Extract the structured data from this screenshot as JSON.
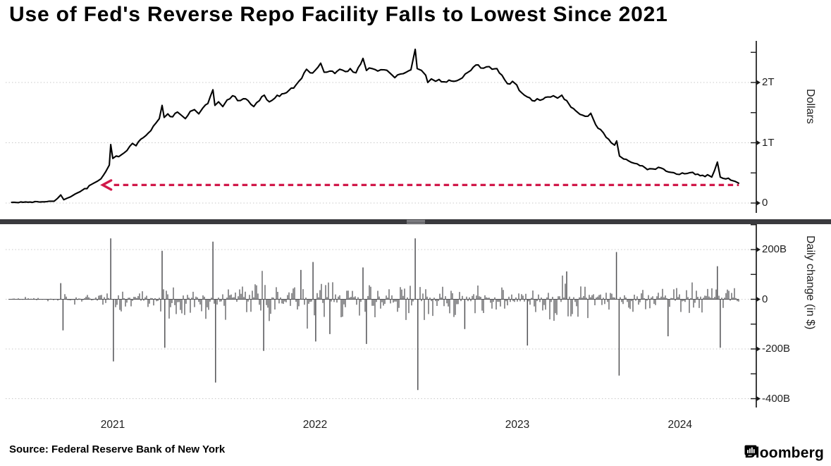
{
  "title": "Use of Fed's Reverse Repo Facility Falls to Lowest Since 2021",
  "source": "Source: Federal Reserve Bank of New York",
  "brand": {
    "name": "Bloomberg",
    "icon": "bloomberg-chart-bubble-icon"
  },
  "colors": {
    "line": "#000000",
    "bars": "#515154",
    "annotation": "#d1194a",
    "grid": "#c6c6c6",
    "axis": "#1a1a1a",
    "divider": "#3a3a3e"
  },
  "x_axis": {
    "year_labels": [
      "2021",
      "2022",
      "2023",
      "2024"
    ]
  },
  "chart_data": [
    {
      "type": "line",
      "panel": "top",
      "ylabel": "Dollars",
      "unit": "trillions of USD",
      "ylim": [
        0,
        2.69
      ],
      "grid": true,
      "yticks": [
        {
          "value": 0,
          "label": "0"
        },
        {
          "value": 1,
          "label": "1T"
        },
        {
          "value": 2,
          "label": "2T"
        }
      ],
      "yticks_minor": [
        0.5,
        1.5,
        2.5
      ],
      "annotation": {
        "type": "dashed-arrow-left",
        "value": 0.3,
        "from": 2021.45,
        "to": 2024.595,
        "color": "#d1194a",
        "meaning": "current usage level last seen in 2021"
      },
      "points": [
        [
          2021.0,
          0.01
        ],
        [
          2021.08,
          0.014
        ],
        [
          2021.15,
          0.02
        ],
        [
          2021.21,
          0.03
        ],
        [
          2021.243,
          0.134
        ],
        [
          2021.258,
          0.055
        ],
        [
          2021.29,
          0.1
        ],
        [
          2021.326,
          0.17
        ],
        [
          2021.361,
          0.24
        ],
        [
          2021.395,
          0.31
        ],
        [
          2021.423,
          0.36
        ],
        [
          2021.441,
          0.4
        ],
        [
          2021.465,
          0.52
        ],
        [
          2021.483,
          0.63
        ],
        [
          2021.49,
          0.97
        ],
        [
          2021.5,
          0.74
        ],
        [
          2021.517,
          0.78
        ],
        [
          2021.542,
          0.8
        ],
        [
          2021.57,
          0.87
        ],
        [
          2021.597,
          0.99
        ],
        [
          2021.615,
          0.95
        ],
        [
          2021.639,
          1.06
        ],
        [
          2021.664,
          1.12
        ],
        [
          2021.688,
          1.2
        ],
        [
          2021.712,
          1.32
        ],
        [
          2021.73,
          1.4
        ],
        [
          2021.744,
          1.62
        ],
        [
          2021.754,
          1.42
        ],
        [
          2021.772,
          1.48
        ],
        [
          2021.796,
          1.43
        ],
        [
          2021.82,
          1.51
        ],
        [
          2021.841,
          1.45
        ],
        [
          2021.859,
          1.4
        ],
        [
          2021.883,
          1.52
        ],
        [
          2021.904,
          1.55
        ],
        [
          2021.925,
          1.48
        ],
        [
          2021.946,
          1.58
        ],
        [
          2021.97,
          1.65
        ],
        [
          2021.995,
          1.88
        ],
        [
          2022.005,
          1.62
        ],
        [
          2022.023,
          1.68
        ],
        [
          2022.044,
          1.6
        ],
        [
          2022.065,
          1.71
        ],
        [
          2022.092,
          1.78
        ],
        [
          2022.117,
          1.7
        ],
        [
          2022.145,
          1.73
        ],
        [
          2022.169,
          1.7
        ],
        [
          2022.197,
          1.6
        ],
        [
          2022.225,
          1.7
        ],
        [
          2022.249,
          1.79
        ],
        [
          2022.274,
          1.68
        ],
        [
          2022.301,
          1.74
        ],
        [
          2022.336,
          1.81
        ],
        [
          2022.371,
          1.87
        ],
        [
          2022.406,
          1.96
        ],
        [
          2022.434,
          2.07
        ],
        [
          2022.458,
          2.22
        ],
        [
          2022.476,
          2.16
        ],
        [
          2022.5,
          2.2
        ],
        [
          2022.528,
          2.32
        ],
        [
          2022.545,
          2.17
        ],
        [
          2022.573,
          2.19
        ],
        [
          2022.598,
          2.15
        ],
        [
          2022.622,
          2.22
        ],
        [
          2022.65,
          2.18
        ],
        [
          2022.674,
          2.23
        ],
        [
          2022.702,
          2.16
        ],
        [
          2022.737,
          2.4
        ],
        [
          2022.754,
          2.2
        ],
        [
          2022.782,
          2.23
        ],
        [
          2022.81,
          2.19
        ],
        [
          2022.841,
          2.21
        ],
        [
          2022.869,
          2.16
        ],
        [
          2022.894,
          2.08
        ],
        [
          2022.922,
          2.14
        ],
        [
          2022.95,
          2.17
        ],
        [
          2022.974,
          2.21
        ],
        [
          2022.995,
          2.55
        ],
        [
          2023.005,
          2.23
        ],
        [
          2023.026,
          2.2
        ],
        [
          2023.047,
          2.12
        ],
        [
          2023.057,
          2.0
        ],
        [
          2023.075,
          2.06
        ],
        [
          2023.096,
          2.02
        ],
        [
          2023.113,
          2.05
        ],
        [
          2023.138,
          2.01
        ],
        [
          2023.162,
          2.04
        ],
        [
          2023.19,
          2.02
        ],
        [
          2023.214,
          2.05
        ],
        [
          2023.242,
          2.14
        ],
        [
          2023.27,
          2.2
        ],
        [
          2023.295,
          2.29
        ],
        [
          2023.319,
          2.24
        ],
        [
          2023.347,
          2.26
        ],
        [
          2023.375,
          2.22
        ],
        [
          2023.399,
          2.23
        ],
        [
          2023.424,
          2.12
        ],
        [
          2023.451,
          1.98
        ],
        [
          2023.476,
          2.02
        ],
        [
          2023.497,
          1.96
        ],
        [
          2023.521,
          1.83
        ],
        [
          2023.549,
          1.76
        ],
        [
          2023.573,
          1.7
        ],
        [
          2023.598,
          1.73
        ],
        [
          2023.626,
          1.72
        ],
        [
          2023.65,
          1.76
        ],
        [
          2023.678,
          1.78
        ],
        [
          2023.699,
          1.74
        ],
        [
          2023.72,
          1.79
        ],
        [
          2023.744,
          1.7
        ],
        [
          2023.765,
          1.59
        ],
        [
          2023.789,
          1.53
        ],
        [
          2023.81,
          1.47
        ],
        [
          2023.835,
          1.44
        ],
        [
          2023.863,
          1.49
        ],
        [
          2023.887,
          1.3
        ],
        [
          2023.911,
          1.22
        ],
        [
          2023.939,
          1.09
        ],
        [
          2023.964,
          1.0
        ],
        [
          2023.981,
          0.96
        ],
        [
          2023.991,
          1.03
        ],
        [
          2024.005,
          0.78
        ],
        [
          2024.026,
          0.73
        ],
        [
          2024.05,
          0.7
        ],
        [
          2024.078,
          0.66
        ],
        [
          2024.106,
          0.62
        ],
        [
          2024.13,
          0.59
        ],
        [
          2024.155,
          0.57
        ],
        [
          2024.183,
          0.56
        ],
        [
          2024.211,
          0.58
        ],
        [
          2024.235,
          0.53
        ],
        [
          2024.259,
          0.51
        ],
        [
          2024.287,
          0.48
        ],
        [
          2024.315,
          0.5
        ],
        [
          2024.339,
          0.49
        ],
        [
          2024.367,
          0.51
        ],
        [
          2024.392,
          0.48
        ],
        [
          2024.416,
          0.46
        ],
        [
          2024.44,
          0.47
        ],
        [
          2024.461,
          0.43
        ],
        [
          2024.489,
          0.68
        ],
        [
          2024.503,
          0.43
        ],
        [
          2024.531,
          0.4
        ],
        [
          2024.555,
          0.38
        ],
        [
          2024.576,
          0.36
        ],
        [
          2024.594,
          0.33
        ]
      ]
    },
    {
      "type": "bar",
      "panel": "bottom",
      "ylabel": "Daily change (in $)",
      "unit": "billions of USD",
      "ylim": [
        -450,
        330
      ],
      "grid": true,
      "yticks": [
        {
          "value": 200,
          "label": "200B"
        },
        {
          "value": 0,
          "label": "0"
        },
        {
          "value": -200,
          "label": "-200B"
        },
        {
          "value": -400,
          "label": "-400B"
        }
      ],
      "yticks_minor": [
        300,
        100,
        -100,
        -300
      ],
      "key_bars": [
        [
          2021.243,
          65
        ],
        [
          2021.254,
          -125
        ],
        [
          2021.49,
          245
        ],
        [
          2021.503,
          -250
        ],
        [
          2021.744,
          195
        ],
        [
          2021.757,
          -195
        ],
        [
          2021.995,
          232
        ],
        [
          2022.008,
          -335
        ],
        [
          2022.246,
          -208
        ],
        [
          2022.43,
          118
        ],
        [
          2022.49,
          150
        ],
        [
          2022.503,
          -170
        ],
        [
          2022.573,
          -140
        ],
        [
          2022.737,
          128
        ],
        [
          2022.754,
          -180
        ],
        [
          2022.995,
          245
        ],
        [
          2023.008,
          -365
        ],
        [
          2023.24,
          -120
        ],
        [
          2023.55,
          -186
        ],
        [
          2023.744,
          112
        ],
        [
          2023.99,
          190
        ],
        [
          2024.003,
          -307
        ],
        [
          2024.245,
          -149
        ],
        [
          2024.489,
          133
        ],
        [
          2024.503,
          -195
        ]
      ],
      "noise_envelope": [
        [
          2021.0,
          2021.24,
          4
        ],
        [
          2021.24,
          2021.45,
          14
        ],
        [
          2021.45,
          2021.75,
          28
        ],
        [
          2021.75,
          2022.05,
          40
        ],
        [
          2022.05,
          2023.0,
          45
        ],
        [
          2023.0,
          2023.6,
          37
        ],
        [
          2023.6,
          2024.05,
          43
        ],
        [
          2024.05,
          2024.6,
          29
        ]
      ],
      "noise_seed": 42
    }
  ]
}
